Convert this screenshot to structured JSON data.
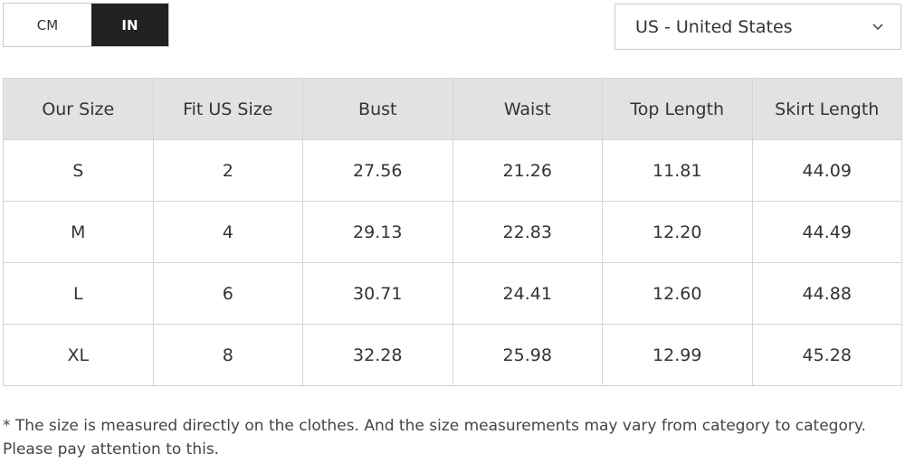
{
  "unit_toggle": {
    "options": [
      "CM",
      "IN"
    ],
    "selected": 1
  },
  "country_select": {
    "value": "US - United States"
  },
  "table": {
    "headers": [
      "Our Size",
      "Fit US Size",
      "Bust",
      "Waist",
      "Top Length",
      "Skirt Length"
    ],
    "rows": [
      [
        "S",
        "2",
        "27.56",
        "21.26",
        "11.81",
        "44.09"
      ],
      [
        "M",
        "4",
        "29.13",
        "22.83",
        "12.20",
        "44.49"
      ],
      [
        "L",
        "6",
        "30.71",
        "24.41",
        "12.60",
        "44.88"
      ],
      [
        "XL",
        "8",
        "32.28",
        "25.98",
        "12.99",
        "45.28"
      ]
    ]
  },
  "footnote": "* The size is measured directly on the clothes. And the size measurements may vary from category to category. Please pay attention to this."
}
